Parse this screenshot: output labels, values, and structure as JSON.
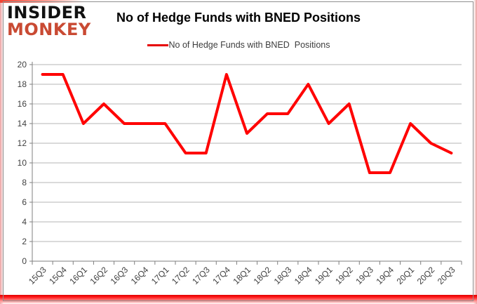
{
  "logo": {
    "line1": "INSIDER",
    "line2": "MONKEY"
  },
  "header": {
    "title": "No of Hedge Funds with BNED Positions"
  },
  "legend": {
    "label": "No of Hedge Funds with BNED  Positions",
    "line_color": "#e60000"
  },
  "colors": {
    "series_line": "#ff0000",
    "gridline": "#b5b5b5",
    "axis": "#7f7f7f",
    "axis_text": "#404040",
    "logo_red": "#c94a33",
    "frame": "#8e8e8e",
    "glow_red": "#e00000"
  },
  "chart_data": {
    "type": "line",
    "title": "No of Hedge Funds with BNED Positions",
    "categories": [
      "15Q3",
      "15Q4",
      "16Q1",
      "16Q2",
      "16Q3",
      "16Q4",
      "17Q1",
      "17Q2",
      "17Q3",
      "17Q4",
      "18Q1",
      "18Q2",
      "18Q3",
      "18Q4",
      "19Q1",
      "19Q2",
      "19Q3",
      "19Q4",
      "20Q1",
      "20Q2",
      "20Q3"
    ],
    "series": [
      {
        "name": "No of Hedge Funds with BNED Positions",
        "color": "#ff0000",
        "values": [
          19,
          19,
          14,
          16,
          14,
          14,
          14,
          11,
          11,
          19,
          13,
          15,
          15,
          18,
          14,
          16,
          9,
          9,
          14,
          12,
          11
        ]
      }
    ],
    "xlabel": "",
    "ylabel": "",
    "ylim": [
      0,
      20
    ],
    "ytick_step": 2,
    "grid": true,
    "legend_position": "top-center",
    "x_tick_label_rotation_deg": 45
  }
}
